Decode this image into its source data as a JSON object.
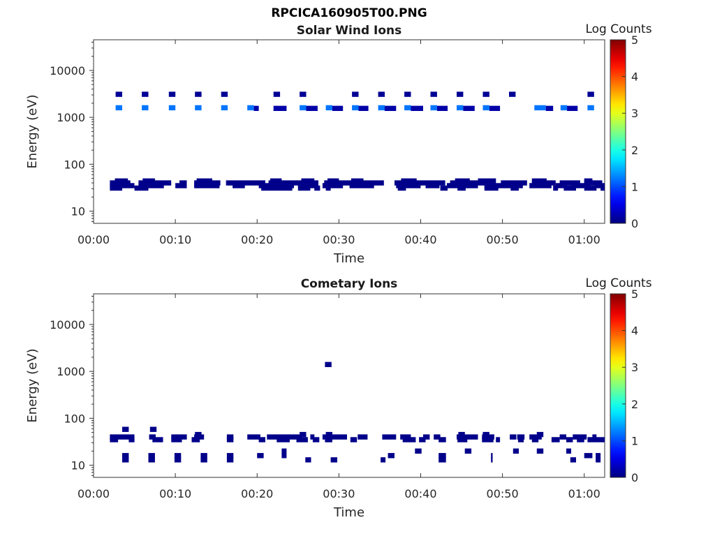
{
  "figure_title": "RPCICA160905T00.PNG",
  "chart_data": [
    {
      "type": "heatmap",
      "title": "Solar Wind Ions",
      "xlabel": "Time",
      "ylabel": "Energy (eV)",
      "x_ticks": [
        "00:00",
        "00:10",
        "00:20",
        "00:30",
        "00:40",
        "00:50",
        "01:00"
      ],
      "x_tick_minutes": [
        0,
        10,
        20,
        30,
        40,
        50,
        60
      ],
      "xlim_minutes": [
        0,
        62.5
      ],
      "y_scale": "log",
      "y_ticks": [
        "10",
        "100",
        "1000",
        "10000"
      ],
      "y_tick_values": [
        10,
        100,
        1000,
        10000
      ],
      "ylim": [
        5.5,
        45000
      ],
      "colorbar": {
        "label": "Log Counts",
        "ticks": [
          "0",
          "1",
          "2",
          "3",
          "4",
          "5"
        ],
        "range": [
          0,
          5
        ],
        "colormap": "jet"
      },
      "bands": [
        {
          "name": "upper",
          "energy": 3100,
          "level": 0.1,
          "spans": [
            [
              2.7,
              3.5
            ],
            [
              5.9,
              6.7
            ],
            [
              9.2,
              10.0
            ],
            [
              12.4,
              13.2
            ],
            [
              15.6,
              16.4
            ],
            [
              22.0,
              22.8
            ],
            [
              25.2,
              26.0
            ],
            [
              31.6,
              32.4
            ],
            [
              34.8,
              35.6
            ],
            [
              38.0,
              38.8
            ],
            [
              41.2,
              42.0
            ],
            [
              44.4,
              45.2
            ],
            [
              47.6,
              48.4
            ],
            [
              50.8,
              51.6
            ],
            [
              60.4,
              61.2
            ]
          ]
        },
        {
          "name": "upper-mid",
          "energy": 1600,
          "level": 1.2,
          "spans": [
            [
              2.7,
              3.5
            ],
            [
              5.9,
              6.7
            ],
            [
              9.2,
              10.0
            ],
            [
              12.4,
              13.2
            ],
            [
              15.6,
              16.4
            ],
            [
              18.8,
              19.6
            ],
            [
              25.2,
              26.0
            ],
            [
              28.4,
              29.2
            ],
            [
              31.6,
              32.4
            ],
            [
              34.8,
              35.6
            ],
            [
              38.0,
              38.8
            ],
            [
              41.2,
              42.0
            ],
            [
              44.4,
              45.2
            ],
            [
              47.6,
              48.4
            ],
            [
              53.9,
              55.3
            ],
            [
              57.1,
              57.9
            ],
            [
              60.4,
              61.2
            ]
          ]
        },
        {
          "name": "upper-mid-b",
          "energy": 1550,
          "level": 0.2,
          "spans": [
            [
              19.6,
              20.2
            ],
            [
              22.0,
              23.6
            ],
            [
              26.0,
              27.4
            ],
            [
              29.2,
              30.5
            ],
            [
              32.4,
              33.6
            ],
            [
              35.6,
              37.0
            ],
            [
              38.8,
              40.3
            ],
            [
              42.0,
              43.3
            ],
            [
              45.2,
              46.6
            ],
            [
              48.4,
              49.7
            ],
            [
              55.3,
              56.2
            ],
            [
              57.9,
              59.2
            ]
          ]
        },
        {
          "name": "low-a",
          "energy": 44,
          "level": 0.05,
          "spans": [
            [
              2.6,
              4.2
            ],
            [
              6.0,
              7.5
            ],
            [
              12.6,
              14.5
            ],
            [
              21.6,
              23.0
            ],
            [
              25.4,
              27.0
            ],
            [
              28.6,
              30.0
            ],
            [
              31.5,
              33.0
            ],
            [
              37.6,
              39.5
            ],
            [
              44.2,
              46.0
            ],
            [
              47.0,
              49.2
            ],
            [
              53.6,
              55.4
            ],
            [
              60.0,
              61.0
            ]
          ]
        },
        {
          "name": "low-b",
          "energy": 40,
          "level": 0.05,
          "spans": [
            [
              2.0,
              4.5
            ],
            [
              5.5,
              9.5
            ],
            [
              10.5,
              11.4
            ],
            [
              12.3,
              15.5
            ],
            [
              16.2,
              21.0
            ],
            [
              21.4,
              27.5
            ],
            [
              28.2,
              35.5
            ],
            [
              36.8,
              43.0
            ],
            [
              43.6,
              49.0
            ],
            [
              49.8,
              53.0
            ],
            [
              53.6,
              56.5
            ],
            [
              57.0,
              59.5
            ],
            [
              60.0,
              62.2
            ]
          ]
        },
        {
          "name": "low-c",
          "energy": 35,
          "level": 0.05,
          "spans": [
            [
              2.0,
              5.0
            ],
            [
              5.5,
              8.6
            ],
            [
              10.0,
              11.4
            ],
            [
              12.3,
              15.4
            ],
            [
              17.0,
              18.5
            ],
            [
              20.2,
              24.5
            ],
            [
              25.0,
              27.4
            ],
            [
              28.0,
              30.5
            ],
            [
              31.3,
              34.3
            ],
            [
              37.0,
              40.0
            ],
            [
              40.6,
              42.3
            ],
            [
              43.2,
              47.0
            ],
            [
              47.8,
              52.5
            ],
            [
              53.3,
              56.0
            ],
            [
              56.5,
              57.9
            ],
            [
              58.4,
              60.7
            ],
            [
              61.3,
              62.5
            ]
          ]
        },
        {
          "name": "low-d",
          "energy": 31,
          "level": 0.05,
          "spans": [
            [
              2.0,
              3.5
            ],
            [
              5.0,
              6.7
            ],
            [
              20.5,
              24.3
            ],
            [
              25.0,
              26.5
            ],
            [
              27.0,
              27.7
            ],
            [
              28.4,
              29.0
            ],
            [
              37.2,
              38.2
            ],
            [
              42.4,
              43.3
            ],
            [
              44.5,
              45.5
            ],
            [
              47.8,
              49.5
            ],
            [
              51.0,
              52.0
            ],
            [
              56.2,
              56.8
            ],
            [
              57.5,
              59.0
            ],
            [
              60.0,
              61.5
            ],
            [
              62.0,
              62.5
            ]
          ]
        }
      ]
    },
    {
      "type": "heatmap",
      "title": "Cometary Ions",
      "xlabel": "Time",
      "ylabel": "Energy (eV)",
      "x_ticks": [
        "00:00",
        "00:10",
        "00:20",
        "00:30",
        "00:40",
        "00:50",
        "01:00"
      ],
      "x_tick_minutes": [
        0,
        10,
        20,
        30,
        40,
        50,
        60
      ],
      "xlim_minutes": [
        0,
        62.5
      ],
      "y_scale": "log",
      "y_ticks": [
        "10",
        "100",
        "1000",
        "10000"
      ],
      "y_tick_values": [
        10,
        100,
        1000,
        10000
      ],
      "ylim": [
        5.5,
        45000
      ],
      "colorbar": {
        "label": "Log Counts",
        "ticks": [
          "0",
          "1",
          "2",
          "3",
          "4",
          "5"
        ],
        "range": [
          0,
          5
        ],
        "colormap": "jet"
      },
      "bands": [
        {
          "name": "isolated-high",
          "energy": 1400,
          "level": 0.05,
          "spans": [
            [
              28.3,
              29.1
            ]
          ]
        },
        {
          "name": "c-60",
          "energy": 58,
          "level": 0.05,
          "spans": [
            [
              3.5,
              4.3
            ],
            [
              6.9,
              7.7
            ]
          ]
        },
        {
          "name": "c-45",
          "energy": 45,
          "level": 0.05,
          "spans": [
            [
              12.4,
              13.2
            ],
            [
              25.2,
              26.0
            ],
            [
              28.4,
              29.2
            ],
            [
              44.6,
              45.4
            ],
            [
              47.6,
              48.4
            ],
            [
              54.2,
              55.0
            ]
          ]
        },
        {
          "name": "c-40",
          "energy": 40,
          "level": 0.05,
          "spans": [
            [
              2.0,
              5.0
            ],
            [
              6.8,
              7.6
            ],
            [
              9.5,
              11.4
            ],
            [
              12.3,
              13.5
            ],
            [
              16.3,
              17.1
            ],
            [
              18.8,
              20.4
            ],
            [
              21.2,
              25.5
            ],
            [
              26.5,
              27.0
            ],
            [
              28.0,
              31.0
            ],
            [
              32.3,
              33.5
            ],
            [
              35.3,
              37.0
            ],
            [
              37.5,
              38.8
            ],
            [
              40.3,
              41.1
            ],
            [
              41.6,
              42.4
            ],
            [
              44.4,
              47.0
            ],
            [
              47.5,
              49.0
            ],
            [
              50.9,
              51.7
            ],
            [
              51.8,
              52.7
            ],
            [
              53.3,
              54.8
            ],
            [
              57.0,
              57.8
            ],
            [
              58.6,
              60.3
            ],
            [
              61.0,
              61.5
            ]
          ]
        },
        {
          "name": "c-35",
          "energy": 35,
          "level": 0.05,
          "spans": [
            [
              2.0,
              3.0
            ],
            [
              4.3,
              5.0
            ],
            [
              7.2,
              8.5
            ],
            [
              9.5,
              10.8
            ],
            [
              12.0,
              13.0
            ],
            [
              16.3,
              17.1
            ],
            [
              20.2,
              21.0
            ],
            [
              22.4,
              24.0
            ],
            [
              24.8,
              26.2
            ],
            [
              26.8,
              27.6
            ],
            [
              28.3,
              29.2
            ],
            [
              31.4,
              32.2
            ],
            [
              37.8,
              39.4
            ],
            [
              39.8,
              40.6
            ],
            [
              42.2,
              43.1
            ],
            [
              44.5,
              45.7
            ],
            [
              47.5,
              48.9
            ],
            [
              49.2,
              49.7
            ],
            [
              51.9,
              52.6
            ],
            [
              53.6,
              54.4
            ],
            [
              56.0,
              57.0
            ],
            [
              57.8,
              58.6
            ],
            [
              59.1,
              60.0
            ],
            [
              60.4,
              62.5
            ]
          ]
        },
        {
          "name": "c-20",
          "energy": 20,
          "level": 0.05,
          "spans": [
            [
              23.0,
              23.6
            ],
            [
              39.3,
              40.1
            ],
            [
              45.4,
              46.2
            ],
            [
              51.3,
              52.0
            ],
            [
              54.2,
              55.0
            ],
            [
              57.8,
              58.4
            ]
          ]
        },
        {
          "name": "c-16",
          "energy": 16,
          "level": 0.05,
          "spans": [
            [
              3.5,
              4.3
            ],
            [
              6.7,
              7.5
            ],
            [
              9.9,
              10.7
            ],
            [
              13.1,
              13.9
            ],
            [
              16.3,
              17.1
            ],
            [
              20.0,
              20.8
            ],
            [
              23.0,
              23.6
            ],
            [
              36.0,
              36.8
            ],
            [
              42.2,
              43.1
            ],
            [
              48.6,
              48.8
            ],
            [
              60.0,
              61.0
            ],
            [
              61.4,
              62.0
            ]
          ]
        },
        {
          "name": "c-13",
          "energy": 13,
          "level": 0.05,
          "spans": [
            [
              3.5,
              4.3
            ],
            [
              6.7,
              7.5
            ],
            [
              9.9,
              10.7
            ],
            [
              13.1,
              13.9
            ],
            [
              16.3,
              17.1
            ],
            [
              25.9,
              26.6
            ],
            [
              29.0,
              29.8
            ],
            [
              35.1,
              35.7
            ],
            [
              42.2,
              43.1
            ],
            [
              48.6,
              48.8
            ],
            [
              58.3,
              59.0
            ],
            [
              61.4,
              62.0
            ]
          ]
        }
      ]
    }
  ]
}
